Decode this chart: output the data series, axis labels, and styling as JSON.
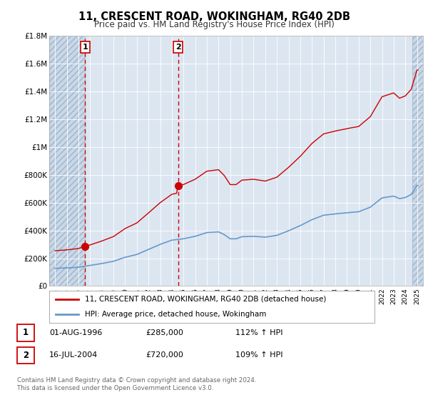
{
  "title": "11, CRESCENT ROAD, WOKINGHAM, RG40 2DB",
  "subtitle": "Price paid vs. HM Land Registry's House Price Index (HPI)",
  "legend_label_red": "11, CRESCENT ROAD, WOKINGHAM, RG40 2DB (detached house)",
  "legend_label_blue": "HPI: Average price, detached house, Wokingham",
  "sale1_date": "01-AUG-1996",
  "sale1_price": "£285,000",
  "sale1_hpi": "112% ↑ HPI",
  "sale2_date": "16-JUL-2004",
  "sale2_price": "£720,000",
  "sale2_hpi": "109% ↑ HPI",
  "footer": "Contains HM Land Registry data © Crown copyright and database right 2024.\nThis data is licensed under the Open Government Licence v3.0.",
  "sale1_x": 1996.58,
  "sale1_y": 285000,
  "sale2_x": 2004.54,
  "sale2_y": 720000,
  "red_color": "#cc0000",
  "blue_color": "#6699cc",
  "background_color": "#ffffff",
  "plot_bg_color": "#dce6f1",
  "hatch_bg_color": "#c8d8e8",
  "grid_color": "#ffffff",
  "ylim": [
    0,
    1800000
  ],
  "xlim": [
    1993.5,
    2025.5
  ]
}
